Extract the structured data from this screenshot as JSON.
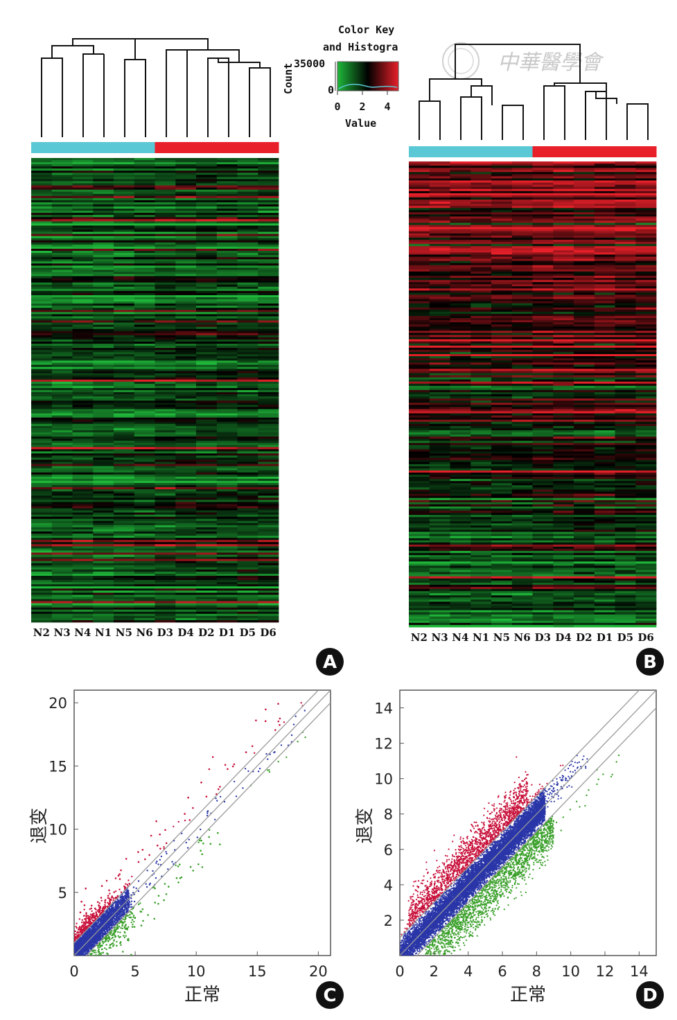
{
  "color_key": {
    "title_line1": "Color Key",
    "title_line2": "and Histogra",
    "count_label": "Count",
    "count_max": "35000",
    "count_min": "0",
    "value_ticks": [
      "0",
      "2",
      "4"
    ],
    "value_label": "Value",
    "colors": {
      "low": "#1fb83a",
      "mid": "#000000",
      "high": "#e8202a"
    }
  },
  "watermark": "中華醫學會",
  "group_colors": {
    "normal": "#5bc8d6",
    "degenerated": "#e8202a"
  },
  "panel_letters": [
    "A",
    "B",
    "C",
    "D"
  ],
  "scatter_colors": {
    "up": "#c8103a",
    "equal": "#2a36a8",
    "down": "#3aa02a"
  },
  "chart_data": [
    {
      "panel": "A",
      "type": "heatmap",
      "columns": [
        "N2",
        "N3",
        "N4",
        "N1",
        "N5",
        "N6",
        "D3",
        "D4",
        "D2",
        "D1",
        "D5",
        "D6"
      ],
      "groups": [
        "normal",
        "normal",
        "normal",
        "normal",
        "normal",
        "normal",
        "degenerated",
        "degenerated",
        "degenerated",
        "degenerated",
        "degenerated",
        "degenerated"
      ],
      "value_range": [
        0,
        4
      ]
    },
    {
      "panel": "B",
      "type": "heatmap",
      "columns": [
        "N2",
        "N3",
        "N4",
        "N1",
        "N5",
        "N6",
        "D3",
        "D4",
        "D2",
        "D1",
        "D5",
        "D6"
      ],
      "groups": [
        "normal",
        "normal",
        "normal",
        "normal",
        "normal",
        "normal",
        "degenerated",
        "degenerated",
        "degenerated",
        "degenerated",
        "degenerated",
        "degenerated"
      ],
      "value_range": [
        0,
        4
      ]
    },
    {
      "panel": "C",
      "type": "scatter",
      "xlabel": "正常",
      "ylabel": "退变",
      "xlim": [
        0,
        21
      ],
      "ylim": [
        0,
        21
      ],
      "xticks": [
        0,
        5,
        10,
        15,
        20
      ],
      "yticks": [
        5,
        10,
        15,
        20
      ],
      "reference_lines": [
        {
          "slope": 1,
          "offset": -1
        },
        {
          "slope": 1,
          "offset": 0
        },
        {
          "slope": 1,
          "offset": 1
        }
      ]
    },
    {
      "panel": "D",
      "type": "scatter",
      "xlabel": "正常",
      "ylabel": "退变",
      "xlim": [
        0,
        15
      ],
      "ylim": [
        0,
        15
      ],
      "xticks": [
        0,
        2,
        4,
        6,
        8,
        10,
        12,
        14
      ],
      "yticks": [
        2,
        4,
        6,
        8,
        10,
        12,
        14
      ],
      "reference_lines": [
        {
          "slope": 1,
          "offset": -1
        },
        {
          "slope": 1,
          "offset": 0
        },
        {
          "slope": 1,
          "offset": 1
        }
      ]
    }
  ]
}
